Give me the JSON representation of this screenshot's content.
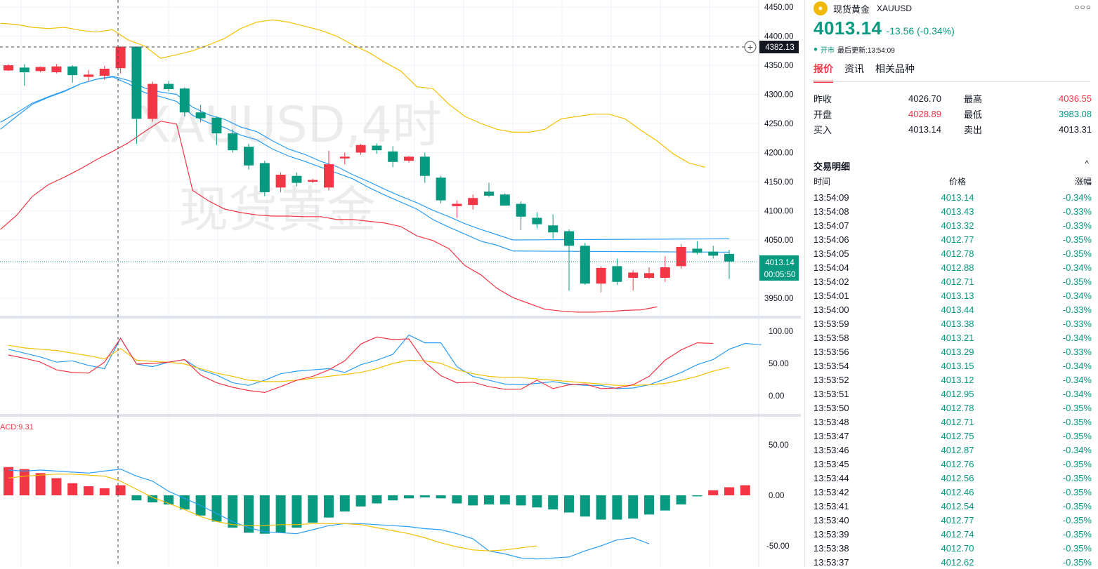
{
  "chart": {
    "watermark_line1": "XAUUSD,4时",
    "watermark_line2": "现货黄金",
    "macd_label": "ACD:9.31",
    "crosshair_price": "4382.13",
    "last_price_tag": "4013.14",
    "countdown_tag": "00:05:50",
    "price_axis": [
      "4450.00",
      "4400.00",
      "4350.00",
      "4300.00",
      "4250.00",
      "4200.00",
      "4150.00",
      "4100.00",
      "4050.00",
      "3950.00"
    ],
    "osc_axis": [
      "100.00",
      "50.00",
      "0.00"
    ],
    "macd_axis": [
      "50.00",
      "0.00",
      "-50.00"
    ],
    "colors": {
      "up": "#089981",
      "down": "#f23645",
      "upper_band": "#f5c000",
      "lower_band": "#f23645",
      "ma": "#2a9df4"
    }
  },
  "chart_data": {
    "type": "candlestick",
    "symbol": "XAUUSD",
    "timeframe": "4时",
    "ylim": [
      3925,
      4455
    ],
    "candles": [
      {
        "o": 4341,
        "h": 4352,
        "l": 4340,
        "c": 4350
      },
      {
        "o": 4346,
        "h": 4352,
        "l": 4315,
        "c": 4338
      },
      {
        "o": 4340,
        "h": 4348,
        "l": 4338,
        "c": 4347
      },
      {
        "o": 4338,
        "h": 4352,
        "l": 4336,
        "c": 4348
      },
      {
        "o": 4348,
        "h": 4350,
        "l": 4320,
        "c": 4333
      },
      {
        "o": 4330,
        "h": 4342,
        "l": 4322,
        "c": 4334
      },
      {
        "o": 4332,
        "h": 4349,
        "l": 4325,
        "c": 4344
      },
      {
        "o": 4345,
        "h": 4382,
        "l": 4336,
        "c": 4382
      },
      {
        "o": 4382,
        "h": 4382,
        "l": 4215,
        "c": 4258
      },
      {
        "o": 4258,
        "h": 4322,
        "l": 4253,
        "c": 4318
      },
      {
        "o": 4318,
        "h": 4323,
        "l": 4305,
        "c": 4309
      },
      {
        "o": 4310,
        "h": 4312,
        "l": 4262,
        "c": 4269
      },
      {
        "o": 4269,
        "h": 4282,
        "l": 4252,
        "c": 4259
      },
      {
        "o": 4260,
        "h": 4262,
        "l": 4213,
        "c": 4233
      },
      {
        "o": 4233,
        "h": 4240,
        "l": 4200,
        "c": 4204
      },
      {
        "o": 4210,
        "h": 4215,
        "l": 4171,
        "c": 4178
      },
      {
        "o": 4182,
        "h": 4186,
        "l": 4125,
        "c": 4132
      },
      {
        "o": 4140,
        "h": 4166,
        "l": 4132,
        "c": 4162
      },
      {
        "o": 4160,
        "h": 4166,
        "l": 4142,
        "c": 4148
      },
      {
        "o": 4150,
        "h": 4155,
        "l": 4148,
        "c": 4153
      },
      {
        "o": 4140,
        "h": 4203,
        "l": 4135,
        "c": 4180
      },
      {
        "o": 4190,
        "h": 4200,
        "l": 4180,
        "c": 4193
      },
      {
        "o": 4200,
        "h": 4215,
        "l": 4196,
        "c": 4213
      },
      {
        "o": 4212,
        "h": 4216,
        "l": 4198,
        "c": 4204
      },
      {
        "o": 4202,
        "h": 4211,
        "l": 4175,
        "c": 4184
      },
      {
        "o": 4186,
        "h": 4194,
        "l": 4183,
        "c": 4193
      },
      {
        "o": 4193,
        "h": 4200,
        "l": 4148,
        "c": 4160
      },
      {
        "o": 4157,
        "h": 4160,
        "l": 4113,
        "c": 4118
      },
      {
        "o": 4108,
        "h": 4118,
        "l": 4088,
        "c": 4112
      },
      {
        "o": 4110,
        "h": 4128,
        "l": 4102,
        "c": 4122
      },
      {
        "o": 4133,
        "h": 4148,
        "l": 4124,
        "c": 4126
      },
      {
        "o": 4128,
        "h": 4130,
        "l": 4109,
        "c": 4109
      },
      {
        "o": 4112,
        "h": 4116,
        "l": 4067,
        "c": 4090
      },
      {
        "o": 4088,
        "h": 4098,
        "l": 4070,
        "c": 4077
      },
      {
        "o": 4075,
        "h": 4094,
        "l": 4052,
        "c": 4063
      },
      {
        "o": 4065,
        "h": 4068,
        "l": 3963,
        "c": 4040
      },
      {
        "o": 4040,
        "h": 4045,
        "l": 3973,
        "c": 3975
      },
      {
        "o": 3975,
        "h": 4005,
        "l": 3960,
        "c": 4002
      },
      {
        "o": 4005,
        "h": 4018,
        "l": 3973,
        "c": 3978
      },
      {
        "o": 3985,
        "h": 3998,
        "l": 3963,
        "c": 3994
      },
      {
        "o": 3985,
        "h": 4003,
        "l": 3983,
        "c": 3993
      },
      {
        "o": 3985,
        "h": 4022,
        "l": 3978,
        "c": 4003
      },
      {
        "o": 4005,
        "h": 4043,
        "l": 4000,
        "c": 4038
      },
      {
        "o": 4035,
        "h": 4048,
        "l": 4025,
        "c": 4028
      },
      {
        "o": 4030,
        "h": 4040,
        "l": 4018,
        "c": 4023
      },
      {
        "o": 4026,
        "h": 4033,
        "l": 3983,
        "c": 4013
      }
    ],
    "upper_band": [
      4422,
      4420,
      4415,
      4413,
      4415,
      4410,
      4407,
      4411,
      4393,
      4383,
      4362,
      4368,
      4375,
      4385,
      4396,
      4413,
      4424,
      4428,
      4424,
      4417,
      4410,
      4400,
      4385,
      4372,
      4355,
      4340,
      4313,
      4310,
      4283,
      4262,
      4250,
      4240,
      4235,
      4235,
      4240,
      4258,
      4262,
      4266,
      4266,
      4258,
      4238,
      4220,
      4198,
      4182,
      4175
    ],
    "lower_band": [
      4068,
      4092,
      4125,
      4145,
      4158,
      4172,
      4188,
      4202,
      4217,
      4236,
      4254,
      4249,
      4135,
      4117,
      4103,
      4097,
      4093,
      4091,
      4091,
      4090,
      4090,
      4085,
      4085,
      4082,
      4079,
      4073,
      4057,
      4049,
      4035,
      4006,
      3990,
      3967,
      3951,
      3941,
      3931,
      3928,
      3926,
      3926,
      3927,
      3929,
      3930,
      3935
    ],
    "ma_fast": [
      4240,
      4262,
      4283,
      4295,
      4305,
      4318,
      4326,
      4330,
      4318,
      4303,
      4296,
      4288,
      4264,
      4251,
      4243,
      4230,
      4222,
      4206,
      4194,
      4185,
      4175,
      4165,
      4155,
      4140,
      4127,
      4115,
      4103,
      4085,
      4072,
      4060,
      4048,
      4041,
      4031
    ],
    "ma_slow": [
      4252,
      4268,
      4285,
      4296,
      4306,
      4318,
      4326,
      4331,
      4324,
      4311,
      4304,
      4300,
      4278,
      4265,
      4257,
      4244,
      4236,
      4220,
      4206,
      4197,
      4185,
      4176,
      4162,
      4150,
      4137,
      4125,
      4114,
      4101,
      4090,
      4078,
      4068,
      4059,
      4050
    ],
    "oscillator": {
      "ylim": [
        -12,
        112
      ],
      "k": [
        72,
        66,
        60,
        52,
        54,
        47,
        42,
        89,
        49,
        45,
        52,
        56,
        40,
        32,
        20,
        16,
        24,
        34,
        38,
        40,
        42,
        36,
        48,
        55,
        64,
        94,
        82,
        82,
        45,
        30,
        24,
        18,
        17,
        19,
        22,
        18,
        16,
        16,
        11,
        12,
        17,
        26,
        36,
        48,
        56,
        72,
        81,
        79
      ],
      "d": [
        78,
        74,
        72,
        70,
        66,
        62,
        57,
        73,
        55,
        53,
        52,
        49,
        42,
        35,
        30,
        24,
        22,
        22,
        24,
        27,
        30,
        33,
        36,
        42,
        50,
        55,
        54,
        50,
        40,
        34,
        30,
        28,
        28,
        26,
        24,
        22,
        20,
        18,
        16,
        16,
        17,
        19,
        24,
        30,
        38,
        44
      ],
      "j": [
        63,
        58,
        52,
        40,
        36,
        35,
        52,
        89,
        49,
        50,
        52,
        56,
        32,
        20,
        13,
        8,
        5,
        14,
        24,
        30,
        40,
        54,
        80,
        91,
        87,
        88,
        52,
        31,
        20,
        21,
        14,
        10,
        10,
        24,
        11,
        17,
        18,
        11,
        12,
        17,
        30,
        55,
        71,
        82,
        81
      ]
    },
    "macd": {
      "ylim": [
        -68,
        75
      ],
      "label": "ACD:9.31",
      "hist": [
        28,
        26,
        22,
        17,
        12,
        9,
        7,
        10,
        -5,
        -7,
        -9,
        -14,
        -20,
        -26,
        -32,
        -37,
        -38,
        -37,
        -32,
        -27,
        -22,
        -16,
        -11,
        -8,
        -5,
        -3,
        -2,
        -3,
        -8,
        -10,
        -9,
        -9,
        -10,
        -12,
        -14,
        -17,
        -21,
        -24,
        -24,
        -23,
        -19,
        -15,
        -9,
        -1,
        5,
        8,
        10
      ],
      "dif": [
        25,
        24,
        25,
        24,
        23,
        22,
        24,
        26,
        19,
        14,
        4,
        -3,
        -10,
        -18,
        -26,
        -32,
        -36,
        -37,
        -38,
        -34,
        -30,
        -28,
        -28,
        -29,
        -30,
        -31,
        -33,
        -34,
        -38,
        -43,
        -55,
        -58,
        -62,
        -63,
        -62,
        -61,
        -55,
        -50,
        -44,
        -42,
        -48
      ],
      "dea": [
        17,
        19,
        20,
        21,
        21,
        20,
        19,
        14,
        6,
        -2,
        -8,
        -14,
        -21,
        -26,
        -29,
        -30,
        -30,
        -29,
        -29,
        -28,
        -28,
        -28,
        -29,
        -32,
        -35,
        -38,
        -42,
        -47,
        -51,
        -54,
        -55,
        -54,
        -52,
        -50
      ]
    }
  },
  "panel": {
    "symbol_name": "现货黄金",
    "symbol_code": "XAUUSD",
    "logo_icon": "gold-coin-icon",
    "more_icon": "more-icon",
    "price": "4013.14",
    "change": "-13.56 (-0.34%)",
    "status_open": "开市",
    "status_update": "最后更新:13:54:09",
    "tabs": [
      "报价",
      "资讯",
      "相关品种"
    ],
    "quote": {
      "prev_close_label": "昨收",
      "prev_close": "4026.70",
      "high_label": "最高",
      "high": "4036.55",
      "open_label": "开盘",
      "open": "4028.89",
      "low_label": "最低",
      "low": "3983.08",
      "bid_label": "买入",
      "bid": "4013.14",
      "ask_label": "卖出",
      "ask": "4013.31"
    },
    "trades_title": "交易明细",
    "trades_headers": [
      "时间",
      "价格",
      "涨幅"
    ],
    "trades": [
      [
        "13:54:09",
        "4013.14",
        "-0.34%"
      ],
      [
        "13:54:08",
        "4013.43",
        "-0.33%"
      ],
      [
        "13:54:07",
        "4013.32",
        "-0.33%"
      ],
      [
        "13:54:06",
        "4012.77",
        "-0.35%"
      ],
      [
        "13:54:05",
        "4012.78",
        "-0.35%"
      ],
      [
        "13:54:04",
        "4012.88",
        "-0.34%"
      ],
      [
        "13:54:02",
        "4012.71",
        "-0.35%"
      ],
      [
        "13:54:01",
        "4013.13",
        "-0.34%"
      ],
      [
        "13:54:00",
        "4013.44",
        "-0.33%"
      ],
      [
        "13:53:59",
        "4013.38",
        "-0.33%"
      ],
      [
        "13:53:58",
        "4013.21",
        "-0.34%"
      ],
      [
        "13:53:56",
        "4013.29",
        "-0.33%"
      ],
      [
        "13:53:54",
        "4013.15",
        "-0.34%"
      ],
      [
        "13:53:52",
        "4013.12",
        "-0.34%"
      ],
      [
        "13:53:51",
        "4012.95",
        "-0.34%"
      ],
      [
        "13:53:50",
        "4012.78",
        "-0.35%"
      ],
      [
        "13:53:48",
        "4012.71",
        "-0.35%"
      ],
      [
        "13:53:47",
        "4012.75",
        "-0.35%"
      ],
      [
        "13:53:46",
        "4012.87",
        "-0.34%"
      ],
      [
        "13:53:45",
        "4012.76",
        "-0.35%"
      ],
      [
        "13:53:44",
        "4012.56",
        "-0.35%"
      ],
      [
        "13:53:42",
        "4012.46",
        "-0.35%"
      ],
      [
        "13:53:41",
        "4012.54",
        "-0.35%"
      ],
      [
        "13:53:40",
        "4012.77",
        "-0.35%"
      ],
      [
        "13:53:39",
        "4012.74",
        "-0.35%"
      ],
      [
        "13:53:38",
        "4012.70",
        "-0.35%"
      ],
      [
        "13:53:37",
        "4012.62",
        "-0.35%"
      ]
    ]
  }
}
